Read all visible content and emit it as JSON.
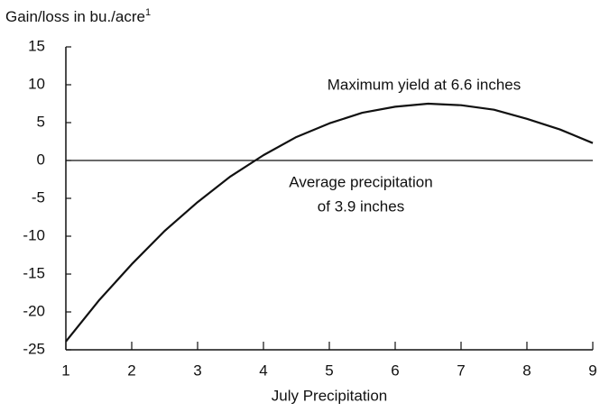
{
  "chart_data": {
    "type": "line",
    "ylabel": "Gain/loss in bu./acre",
    "ylabel_sup": "1",
    "xlabel": "July Precipitation",
    "annotations": [
      "Maximum yield at 6.6 inches",
      "Average precipitation",
      "of 3.9 inches"
    ],
    "x": [
      1,
      1.5,
      2,
      2.5,
      3,
      3.5,
      4,
      4.5,
      5,
      5.5,
      6,
      6.5,
      7,
      7.5,
      8,
      8.5,
      9
    ],
    "series": [
      {
        "color": "#111111",
        "values": [
          -23.9,
          -18.5,
          -13.7,
          -9.3,
          -5.5,
          -2.1,
          0.7,
          3.1,
          4.9,
          6.3,
          7.1,
          7.5,
          7.3,
          6.7,
          5.5,
          4.1,
          2.3
        ]
      }
    ],
    "xlim": [
      1,
      9
    ],
    "xticks": [
      1,
      2,
      3,
      4,
      5,
      6,
      7,
      8,
      9
    ],
    "ylim": [
      -25,
      15
    ],
    "yticks": [
      15,
      10,
      5,
      0,
      -5,
      -10,
      -15,
      -20,
      -25
    ],
    "zero_line": true
  }
}
